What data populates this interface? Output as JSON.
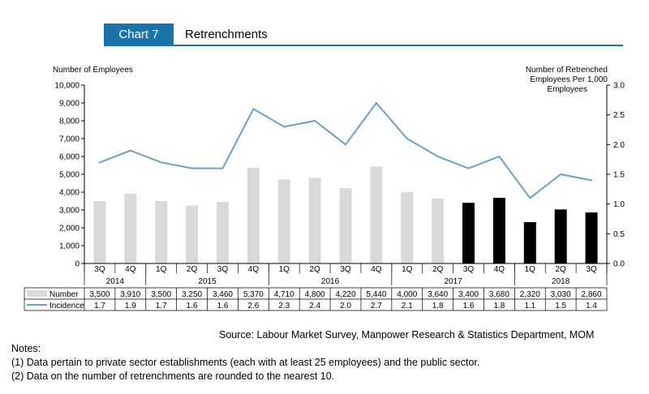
{
  "header": {
    "badge": "Chart 7",
    "title": "Retrenchments"
  },
  "chart_data": {
    "type": "bar+line",
    "ylabel_left": "Number of Employees",
    "ylabel_right": [
      "Number of Retrenched",
      "Employees Per 1,000",
      "Employees"
    ],
    "ylim_left": [
      0,
      10000
    ],
    "ylim_right": [
      0,
      3.0
    ],
    "left_ticks": [
      "0",
      "1,000",
      "2,000",
      "3,000",
      "4,000",
      "5,000",
      "6,000",
      "7,000",
      "8,000",
      "9,000",
      "10,000"
    ],
    "right_ticks": [
      "0.0",
      "0.5",
      "1.0",
      "1.5",
      "2.0",
      "2.5",
      "3.0"
    ],
    "categories": [
      "3Q",
      "4Q",
      "1Q",
      "2Q",
      "3Q",
      "4Q",
      "1Q",
      "2Q",
      "3Q",
      "4Q",
      "1Q",
      "2Q",
      "3Q",
      "4Q",
      "1Q",
      "2Q",
      "3Q"
    ],
    "years": [
      {
        "label": "2014",
        "start": 0,
        "end": 1
      },
      {
        "label": "2015",
        "start": 2,
        "end": 5
      },
      {
        "label": "2016",
        "start": 6,
        "end": 9
      },
      {
        "label": "2017",
        "start": 10,
        "end": 13
      },
      {
        "label": "2018",
        "start": 14,
        "end": 16
      }
    ],
    "series": [
      {
        "name": "Number",
        "type": "bar",
        "color": "#d9d9d9",
        "highlight_color": "#000000",
        "highlight_from": 12,
        "values": [
          3500,
          3910,
          3500,
          3250,
          3460,
          5370,
          4710,
          4800,
          4220,
          5440,
          4000,
          3640,
          3400,
          3680,
          2320,
          3030,
          2860
        ],
        "labels": [
          "3,500",
          "3,910",
          "3,500",
          "3,250",
          "3,460",
          "5,370",
          "4,710",
          "4,800",
          "4,220",
          "5,440",
          "4,000",
          "3,640",
          "3,400",
          "3,680",
          "2,320",
          "3,030",
          "2,860"
        ]
      },
      {
        "name": "Incidence",
        "type": "line",
        "color": "#6d9ec4",
        "values": [
          1.7,
          1.9,
          1.7,
          1.6,
          1.6,
          2.6,
          2.3,
          2.4,
          2.0,
          2.7,
          2.1,
          1.8,
          1.6,
          1.8,
          1.1,
          1.5,
          1.4
        ],
        "labels": [
          "1.7",
          "1.9",
          "1.7",
          "1.6",
          "1.6",
          "2.6",
          "2.3",
          "2.4",
          "2.0",
          "2.7",
          "2.1",
          "1.8",
          "1.6",
          "1.8",
          "1.1",
          "1.5",
          "1.4"
        ]
      }
    ]
  },
  "source": "Source: Labour Market Survey, Manpower Research & Statistics Department, MOM",
  "notes": {
    "title": "Notes:",
    "items": [
      "(1)  Data pertain to private sector establishments (each with at least 25 employees) and the public sector.",
      "(2)  Data on the number of retrenchments are rounded to the nearest 10."
    ]
  }
}
